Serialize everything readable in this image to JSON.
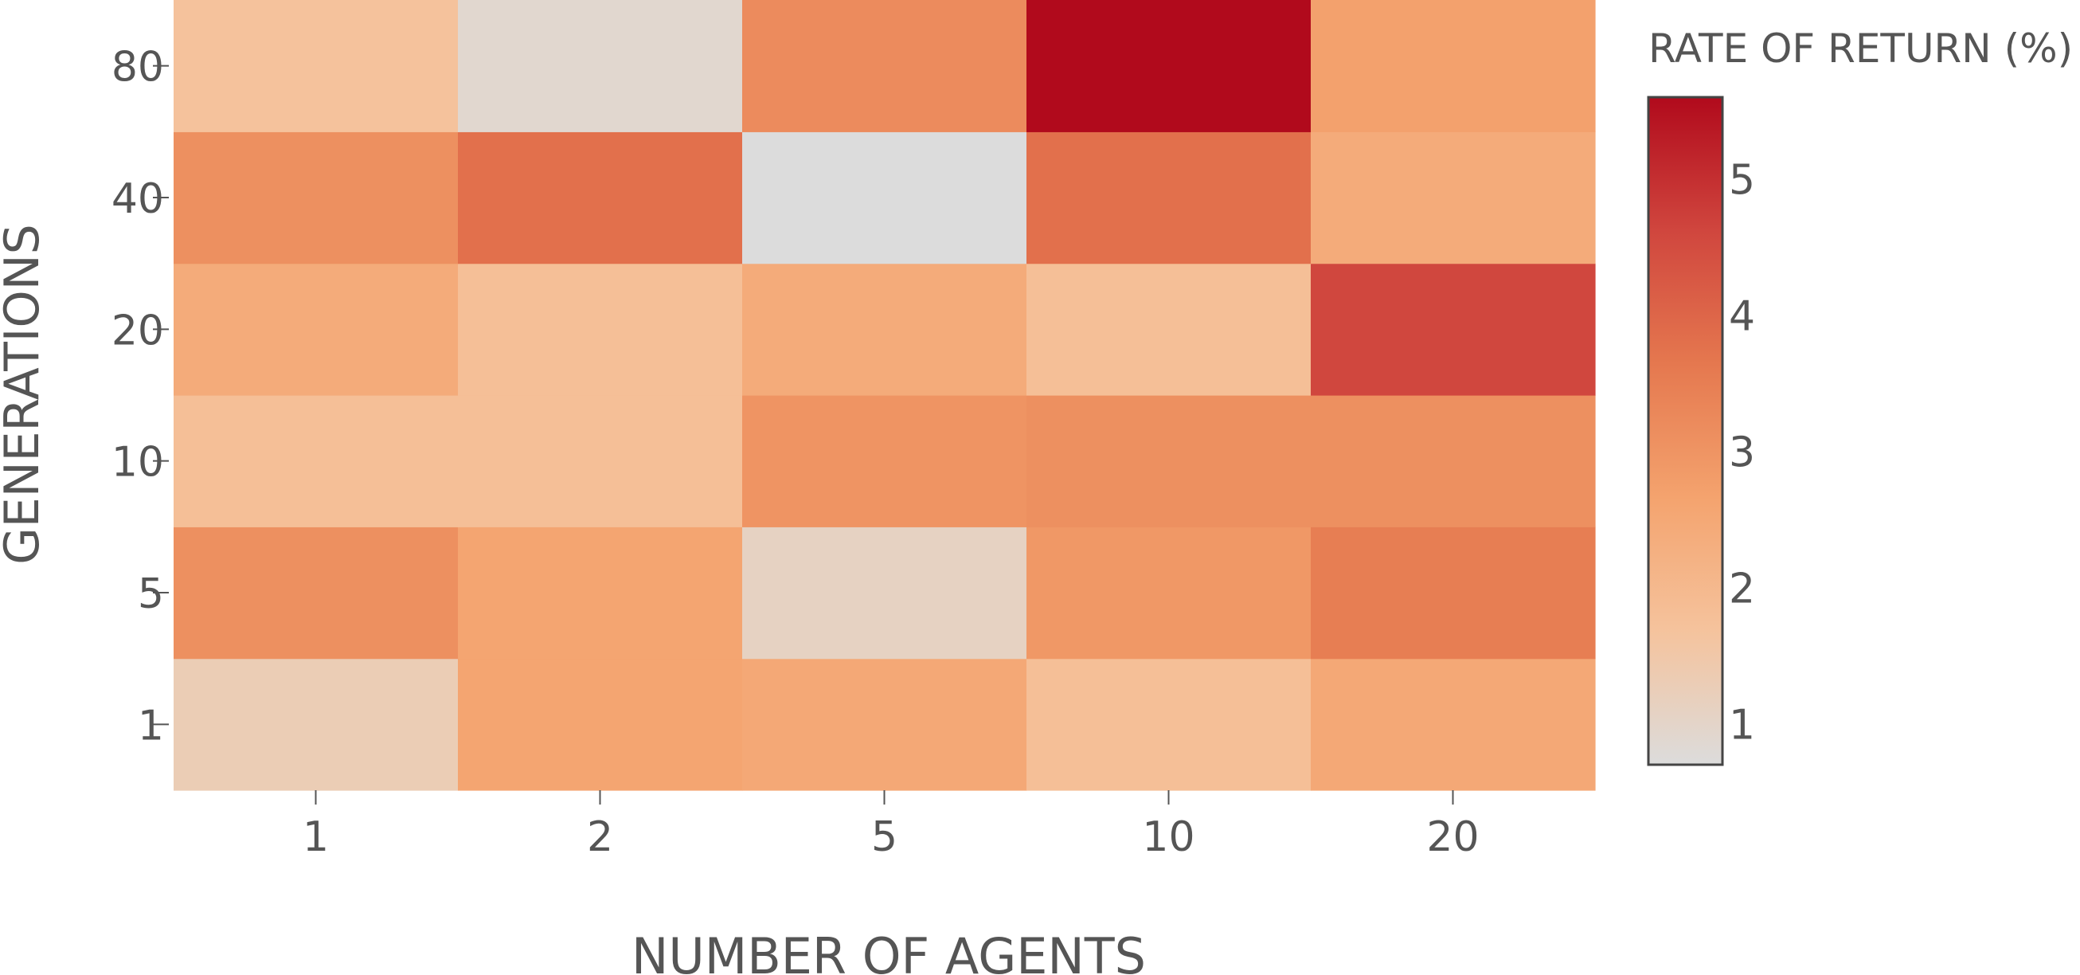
{
  "chart_data": {
    "type": "heatmap",
    "title": "",
    "xlabel": "NUMBER OF AGENTS",
    "ylabel": "GENERATIONS",
    "x_categories": [
      "1",
      "2",
      "5",
      "10",
      "20"
    ],
    "y_categories": [
      "1",
      "5",
      "10",
      "20",
      "40",
      "80"
    ],
    "values": [
      [
        1.3,
        2.6,
        2.5,
        1.8,
        2.5
      ],
      [
        3.1,
        2.6,
        1.1,
        2.9,
        3.5
      ],
      [
        1.8,
        1.8,
        3.0,
        3.1,
        3.1
      ],
      [
        2.4,
        1.8,
        2.4,
        1.8,
        4.6
      ],
      [
        3.1,
        3.8,
        0.7,
        3.8,
        2.4
      ],
      [
        1.7,
        0.9,
        3.2,
        5.6,
        2.7
      ]
    ],
    "colorbar": {
      "title": "RATE OF RETURN (%)",
      "ticks": [
        "1",
        "2",
        "3",
        "4",
        "5"
      ],
      "tick_values": [
        1,
        2,
        3,
        4,
        5
      ],
      "range": [
        0.7,
        5.6
      ]
    },
    "colorscale": [
      [
        0.0,
        "#dcdcdc"
      ],
      [
        0.2,
        "#f5c39d"
      ],
      [
        0.4,
        "#f4a36e"
      ],
      [
        0.6,
        "#e5784f"
      ],
      [
        0.8,
        "#d0463e"
      ],
      [
        1.0,
        "#b10a1c"
      ]
    ],
    "grid": false,
    "legend": "none"
  }
}
